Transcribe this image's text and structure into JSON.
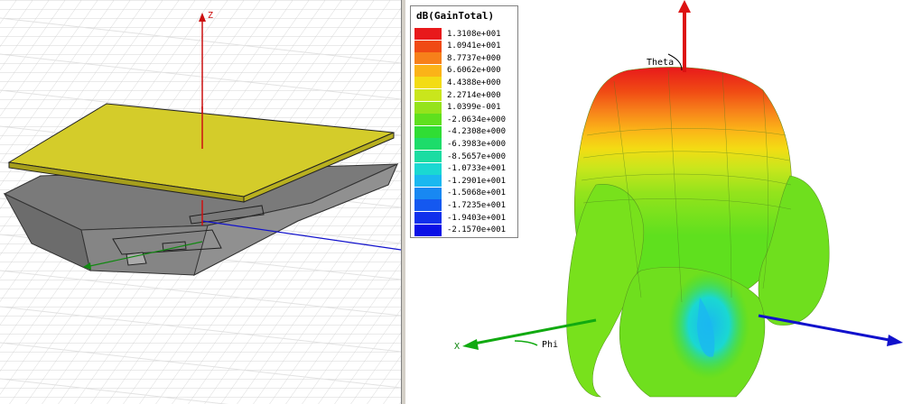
{
  "geometry_view": {
    "axis_labels": {
      "z": "Z"
    },
    "colors": {
      "patch": "#d4cc2a",
      "ground": "#7a7a7a",
      "z_axis": "#cc1111",
      "y_axis": "#1111cc",
      "x_axis": "#118811"
    }
  },
  "pattern_view": {
    "legend": {
      "title": "dB(GainTotal)",
      "entries": [
        {
          "value": "1.3108e+001",
          "color": "#e8191b"
        },
        {
          "value": "1.0941e+001",
          "color": "#f04a14"
        },
        {
          "value": "8.7737e+000",
          "color": "#f7801a"
        },
        {
          "value": "6.6062e+000",
          "color": "#fbb318"
        },
        {
          "value": "4.4388e+000",
          "color": "#f3dc14"
        },
        {
          "value": "2.2714e+000",
          "color": "#c9e61c"
        },
        {
          "value": "1.0399e-001",
          "color": "#95e31c"
        },
        {
          "value": "-2.0634e+000",
          "color": "#5fe01e"
        },
        {
          "value": "-4.2308e+000",
          "color": "#30dd34"
        },
        {
          "value": "-6.3983e+000",
          "color": "#1ddc6a"
        },
        {
          "value": "-8.5657e+000",
          "color": "#1bdca2"
        },
        {
          "value": "-1.0733e+001",
          "color": "#1ad8d2"
        },
        {
          "value": "-1.2901e+001",
          "color": "#1ab8f0"
        },
        {
          "value": "-1.5068e+001",
          "color": "#1888f2"
        },
        {
          "value": "-1.7235e+001",
          "color": "#1458f0"
        },
        {
          "value": "-1.9403e+001",
          "color": "#1030ec"
        },
        {
          "value": "-2.1570e+001",
          "color": "#0a10e6"
        }
      ]
    },
    "axis_labels": {
      "theta": "Theta",
      "phi": "Phi",
      "x": "X"
    }
  }
}
